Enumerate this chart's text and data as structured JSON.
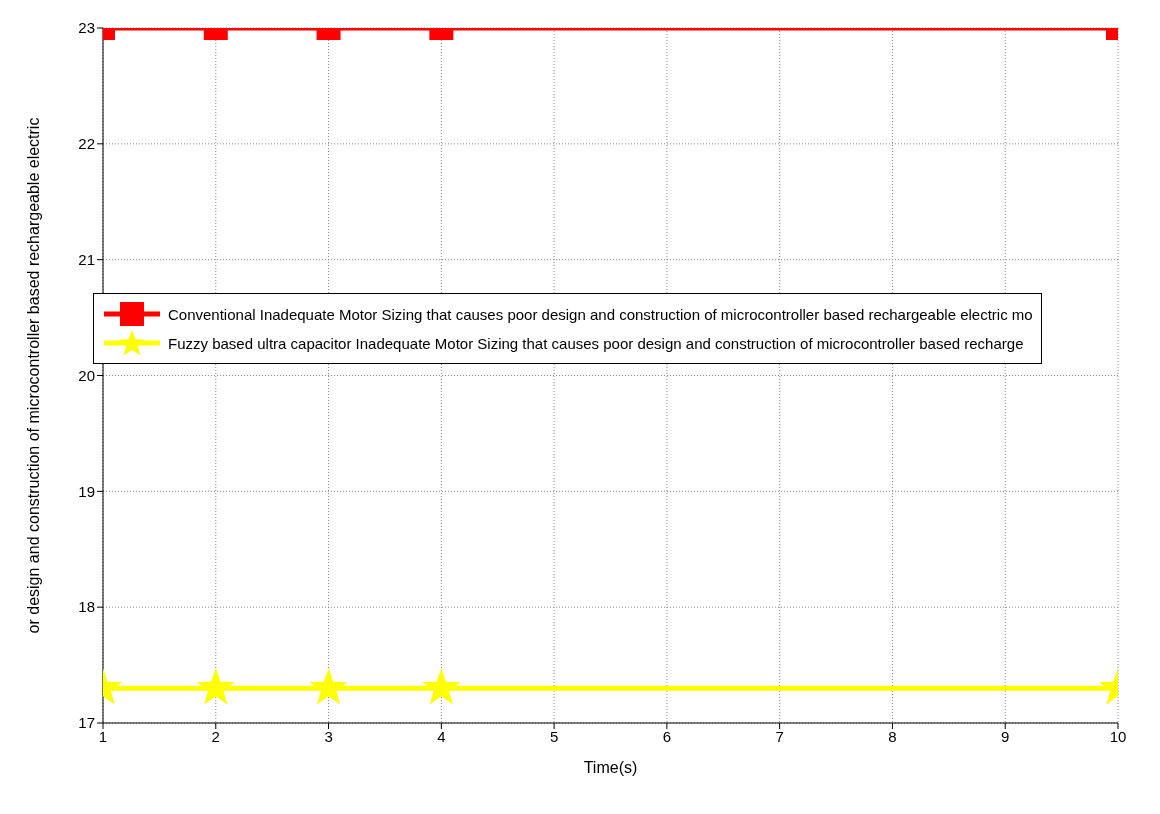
{
  "chart_data": {
    "type": "line",
    "xlabel": "Time(s)",
    "ylabel": "or design and construction of microcontroller based rechargeable electric",
    "x": [
      1,
      2,
      3,
      4,
      10
    ],
    "series": [
      {
        "name": "Conventional Inadequate Motor Sizing that causes poor design and construction of microcontroller based rechargeable electric mo",
        "color": "#ff0000",
        "marker": "square",
        "values": [
          23,
          23,
          23,
          23,
          23
        ]
      },
      {
        "name": "Fuzzy based ultra capacitor Inadequate Motor Sizing that causes poor design and construction of microcontroller based recharge",
        "color": "#ffff00",
        "marker": "star",
        "values": [
          17.3,
          17.3,
          17.3,
          17.3,
          17.3
        ]
      }
    ],
    "xlim": [
      1,
      10
    ],
    "xticks": [
      1,
      2,
      3,
      4,
      5,
      6,
      7,
      8,
      9,
      10
    ],
    "ylim": [
      17,
      23
    ],
    "yticks": [
      17,
      18,
      19,
      20,
      21,
      22,
      23
    ],
    "grid": true,
    "legend": "left",
    "line_style": "solid"
  }
}
